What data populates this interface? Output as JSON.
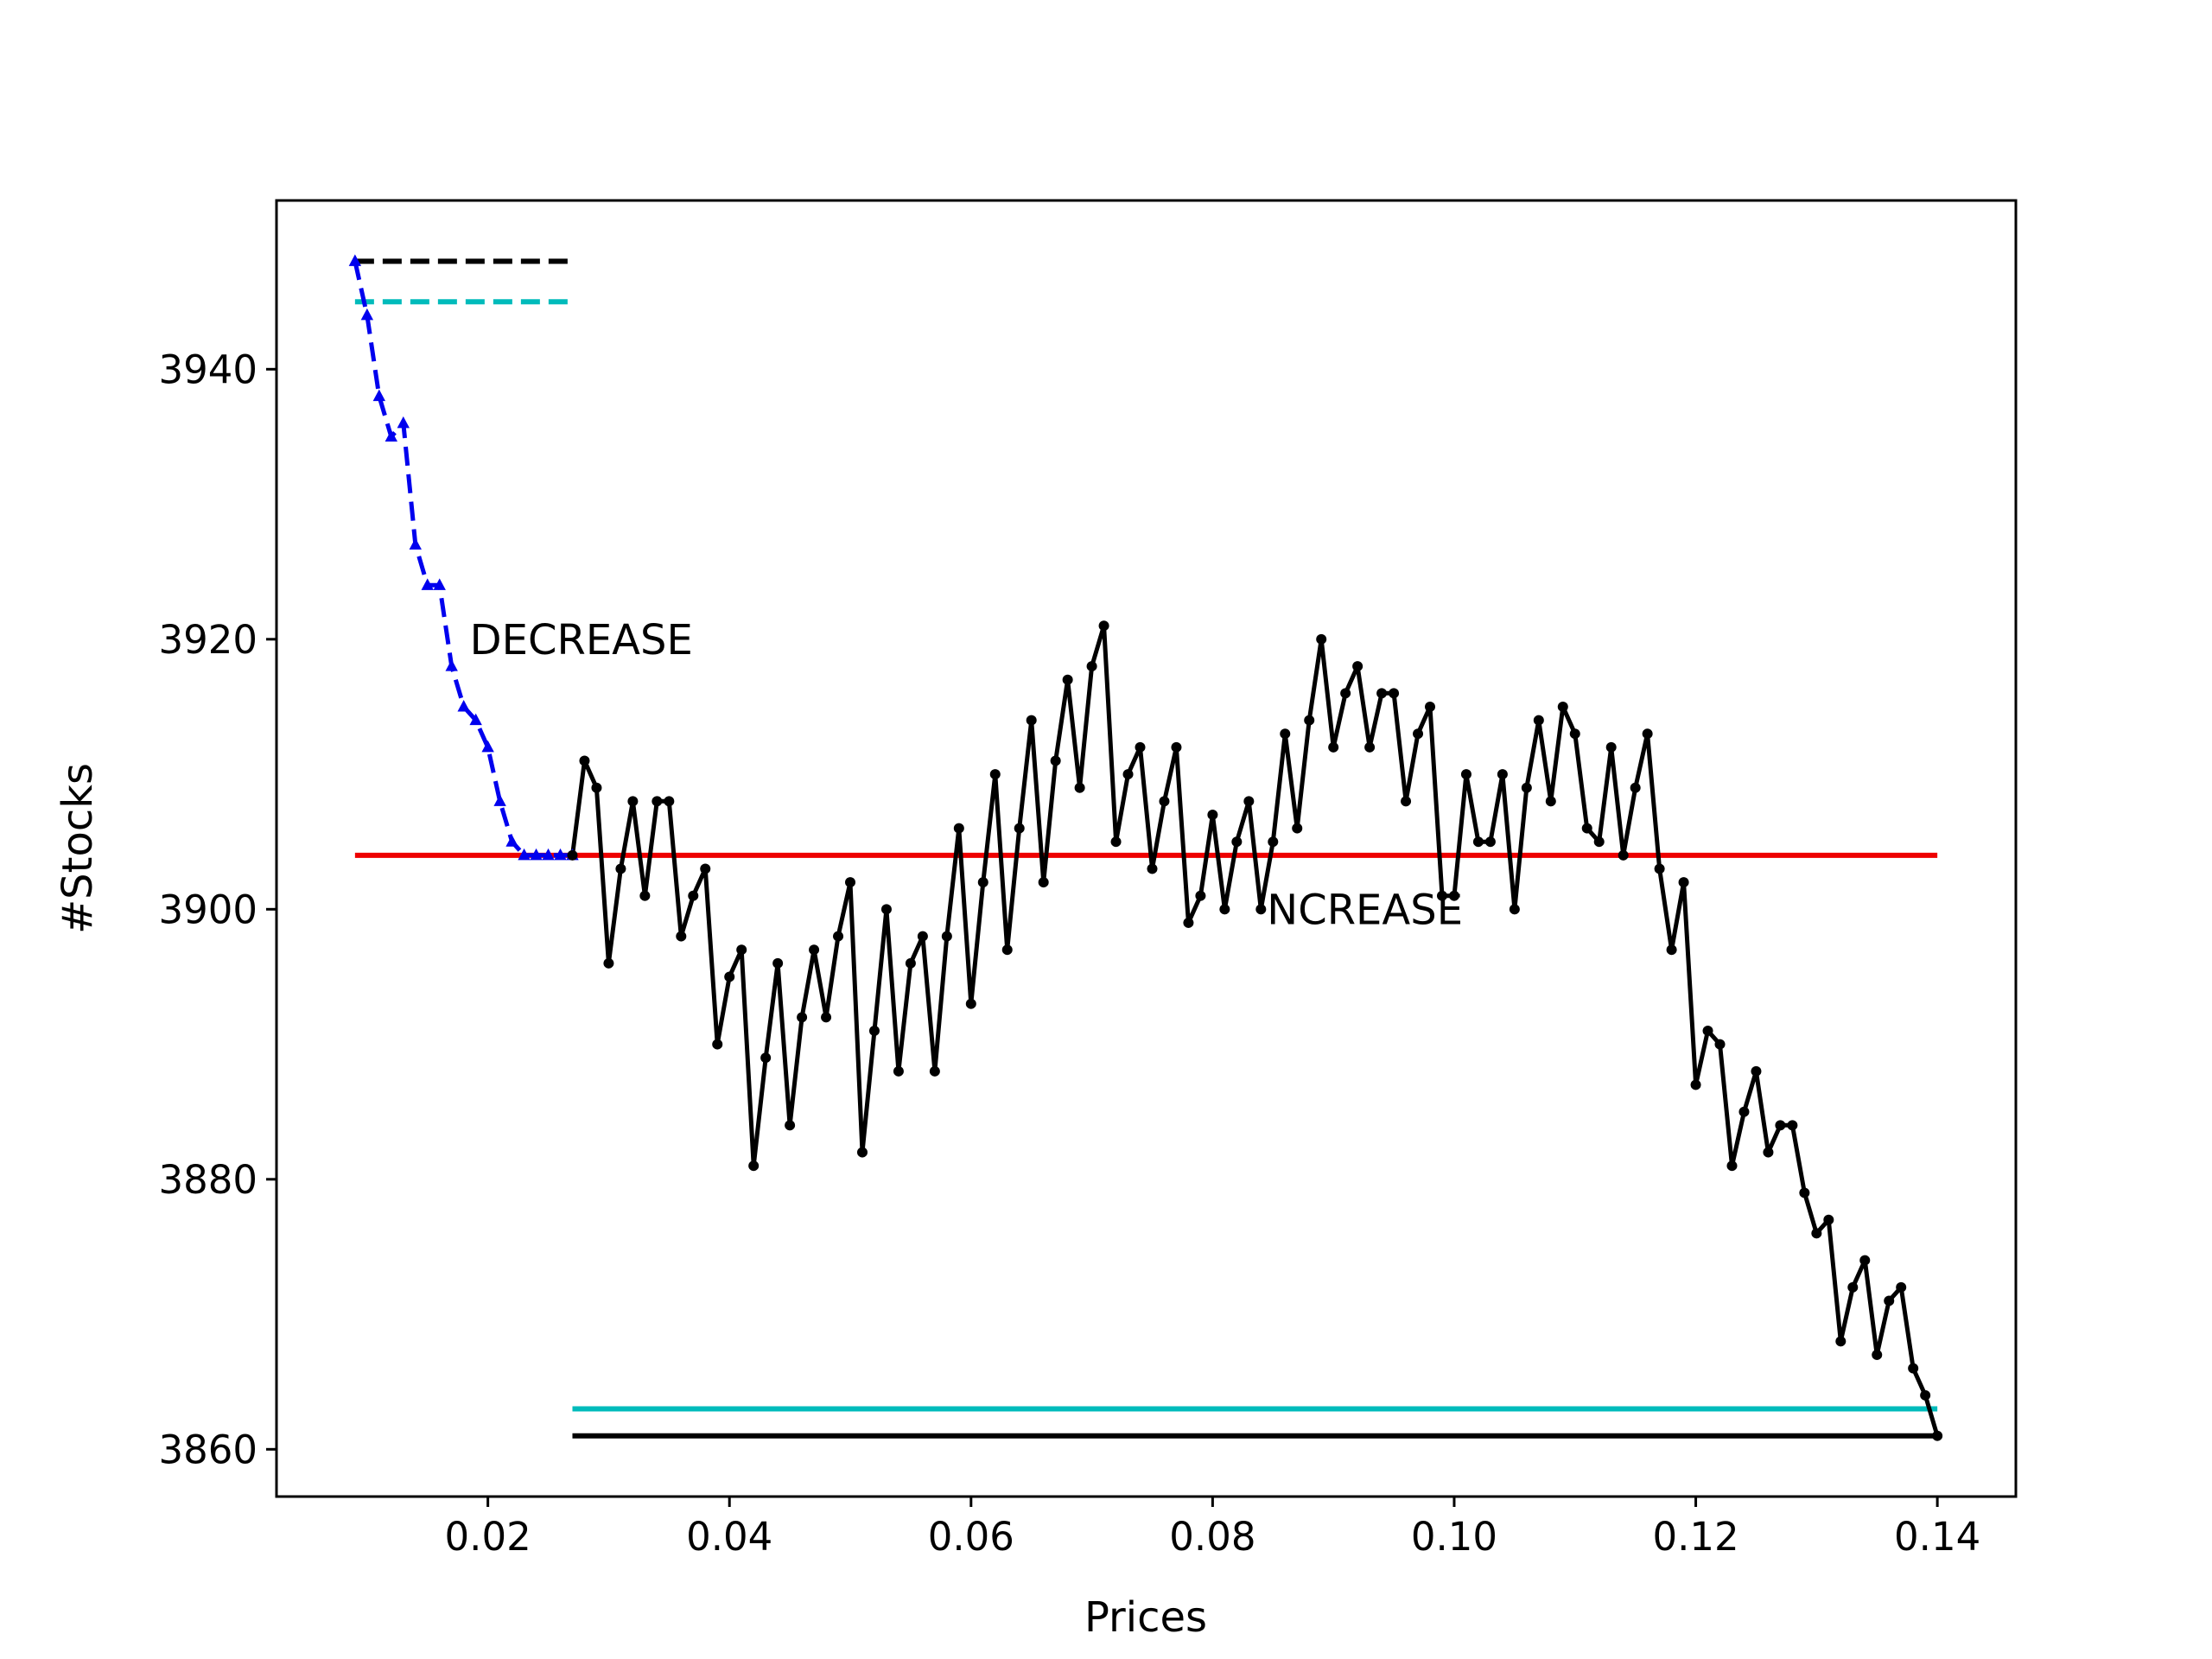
{
  "chart_data": {
    "type": "line",
    "title": "",
    "xlabel": "Prices",
    "ylabel": "#Stocks",
    "xlim": [
      0.0025,
      0.1465
    ],
    "ylim": [
      3856.5,
      3952.5
    ],
    "xticks": [
      0.02,
      0.04,
      0.06,
      0.08,
      0.1,
      0.12,
      0.14
    ],
    "xtick_labels": [
      "0.02",
      "0.04",
      "0.06",
      "0.08",
      "0.10",
      "0.12",
      "0.14"
    ],
    "yticks": [
      3860,
      3880,
      3900,
      3920,
      3940
    ],
    "ytick_labels": [
      "3860",
      "3880",
      "3900",
      "3920",
      "3940"
    ],
    "grid": false,
    "legend": "none",
    "annotations": [
      {
        "text": "DECREASE",
        "x": 0.0185,
        "y": 3920
      },
      {
        "text": "NCREASE",
        "x": 0.0845,
        "y": 3900
      }
    ],
    "series": [
      {
        "color": "#0000ee",
        "style": "dashed",
        "marker": "triangle",
        "x": [
          0.009,
          0.01,
          0.011,
          0.012,
          0.013,
          0.014,
          0.015,
          0.016,
          0.017,
          0.018,
          0.019,
          0.02,
          0.021,
          0.022,
          0.023,
          0.024,
          0.025,
          0.026,
          0.027
        ],
        "y": [
          3948,
          3944,
          3938,
          3935,
          3936,
          3927,
          3924,
          3924,
          3918,
          3915,
          3914,
          3912,
          3908,
          3905,
          3904,
          3904,
          3904,
          3904,
          3904
        ]
      },
      {
        "color": "#000000",
        "style": "solid",
        "marker": "dot",
        "x": [
          0.027,
          0.028,
          0.029,
          0.03,
          0.031,
          0.032,
          0.033,
          0.034,
          0.035,
          0.036,
          0.037,
          0.038,
          0.039,
          0.04,
          0.041,
          0.042,
          0.043,
          0.044,
          0.045,
          0.046,
          0.047,
          0.048,
          0.049,
          0.05,
          0.051,
          0.052,
          0.053,
          0.054,
          0.055,
          0.056,
          0.057,
          0.058,
          0.059,
          0.06,
          0.061,
          0.062,
          0.063,
          0.064,
          0.065,
          0.066,
          0.067,
          0.068,
          0.069,
          0.07,
          0.071,
          0.072,
          0.073,
          0.074,
          0.075,
          0.076,
          0.077,
          0.078,
          0.079,
          0.08,
          0.081,
          0.082,
          0.083,
          0.084,
          0.085,
          0.086,
          0.087,
          0.088,
          0.089,
          0.09,
          0.091,
          0.092,
          0.093,
          0.094,
          0.095,
          0.096,
          0.097,
          0.098,
          0.099,
          0.1,
          0.101,
          0.102,
          0.103,
          0.104,
          0.105,
          0.106,
          0.107,
          0.108,
          0.109,
          0.11,
          0.111,
          0.112,
          0.113,
          0.114,
          0.115,
          0.116,
          0.117,
          0.118,
          0.119,
          0.12,
          0.121,
          0.122,
          0.123,
          0.124,
          0.125,
          0.126,
          0.127,
          0.128,
          0.129,
          0.13,
          0.131,
          0.132,
          0.133,
          0.134,
          0.135,
          0.136,
          0.137,
          0.138,
          0.139,
          0.14
        ],
        "y": [
          3904,
          3911,
          3909,
          3896,
          3903,
          3908,
          3901,
          3908,
          3908,
          3898,
          3901,
          3903,
          3890,
          3895,
          3897,
          3881,
          3889,
          3896,
          3884,
          3892,
          3897,
          3892,
          3898,
          3902,
          3882,
          3891,
          3900,
          3888,
          3896,
          3898,
          3888,
          3898,
          3906,
          3893,
          3902,
          3910,
          3897,
          3906,
          3914,
          3902,
          3911,
          3917,
          3909,
          3918,
          3921,
          3905,
          3910,
          3912,
          3903,
          3908,
          3912,
          3899,
          3901,
          3907,
          3900,
          3905,
          3908,
          3900,
          3905,
          3913,
          3906,
          3914,
          3920,
          3912,
          3916,
          3918,
          3912,
          3916,
          3916,
          3908,
          3913,
          3915,
          3901,
          3901,
          3910,
          3905,
          3905,
          3910,
          3900,
          3909,
          3914,
          3908,
          3915,
          3913,
          3906,
          3905,
          3912,
          3904,
          3909,
          3913,
          3903,
          3897,
          3902,
          3887,
          3891,
          3890,
          3881,
          3885,
          3888,
          3882,
          3884,
          3884,
          3879,
          3876,
          3877,
          3868,
          3872,
          3874,
          3867,
          3871,
          3872,
          3866,
          3864,
          3861
        ]
      }
    ],
    "reference_lines": [
      {
        "color": "#ee0000",
        "style": "solid",
        "y": 3904,
        "x": [
          0.009,
          0.14
        ]
      },
      {
        "color": "#000000",
        "style": "dashed",
        "y": 3948,
        "x": [
          0.009,
          0.027
        ]
      },
      {
        "color": "#00bbbb",
        "style": "dashed",
        "y": 3945,
        "x": [
          0.009,
          0.027
        ]
      },
      {
        "color": "#00bbbb",
        "style": "solid",
        "y": 3863,
        "x": [
          0.027,
          0.14
        ]
      },
      {
        "color": "#000000",
        "style": "solid",
        "y": 3861,
        "x": [
          0.027,
          0.14
        ]
      }
    ]
  }
}
